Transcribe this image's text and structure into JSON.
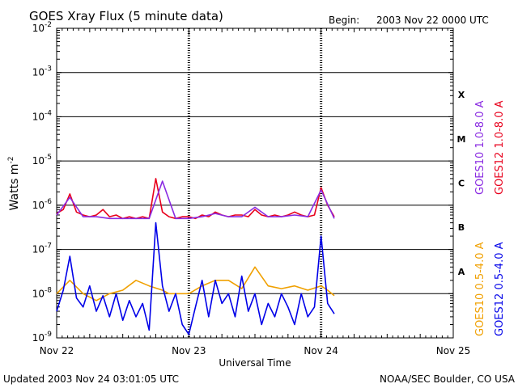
{
  "header": {
    "title": "GOES Xray Flux (5 minute data)",
    "begin_label": "Begin:",
    "begin_value": "2003 Nov 22 0000 UTC"
  },
  "footer": {
    "updated": "Updated 2003 Nov 24 03:01:05 UTC",
    "credit": "NOAA/SEC Boulder, CO USA"
  },
  "chart_data": {
    "type": "line",
    "title": "GOES Xray Flux (5 minute data)",
    "xlabel": "Universal Time",
    "ylabel": "Watts m",
    "ylabel_exponent": "-2",
    "yscale": "log",
    "ylim": [
      1e-09,
      0.01
    ],
    "xlim_days": [
      0,
      3
    ],
    "x_tick_labels": [
      "Nov 22",
      "Nov 23",
      "Nov 24",
      "Nov 25"
    ],
    "y_tick_labels": [
      {
        "base": "10",
        "exp": "-9"
      },
      {
        "base": "10",
        "exp": "-8"
      },
      {
        "base": "10",
        "exp": "-7"
      },
      {
        "base": "10",
        "exp": "-6"
      },
      {
        "base": "10",
        "exp": "-5"
      },
      {
        "base": "10",
        "exp": "-4"
      },
      {
        "base": "10",
        "exp": "-3"
      },
      {
        "base": "10",
        "exp": "-2"
      }
    ],
    "flare_classes": [
      "A",
      "B",
      "C",
      "M",
      "X"
    ],
    "grid": "horizontal",
    "legend_right_1": [
      {
        "name": "GOES10 1.0-8.0 A",
        "color": "#8a2be2"
      },
      {
        "name": "GOES12 1.0-8.0 A",
        "color": "#e8001c"
      }
    ],
    "legend_right_2": [
      {
        "name": "GOES10 0.5-4.0 A",
        "color": "#f0a000"
      },
      {
        "name": "GOES12 0.5-4.0 A",
        "color": "#0000e8"
      }
    ],
    "series": [
      {
        "name": "GOES12 1.0-8.0 A",
        "color": "#e8001c",
        "x": [
          0,
          0.05,
          0.1,
          0.15,
          0.2,
          0.25,
          0.3,
          0.35,
          0.4,
          0.45,
          0.5,
          0.55,
          0.6,
          0.65,
          0.7,
          0.75,
          0.8,
          0.85,
          0.9,
          0.95,
          1.0,
          1.05,
          1.1,
          1.15,
          1.2,
          1.25,
          1.3,
          1.35,
          1.4,
          1.45,
          1.5,
          1.55,
          1.6,
          1.65,
          1.7,
          1.75,
          1.8,
          1.85,
          1.9,
          1.95,
          2.0,
          2.05,
          2.1
        ],
        "y": [
          6.5e-07,
          8e-07,
          1.8e-06,
          7e-07,
          6e-07,
          5.5e-07,
          6e-07,
          8e-07,
          5.5e-07,
          6e-07,
          5e-07,
          5.5e-07,
          5e-07,
          5.5e-07,
          5e-07,
          4e-06,
          7e-07,
          5.5e-07,
          5e-07,
          5.5e-07,
          5.5e-07,
          5e-07,
          6e-07,
          5.5e-07,
          7e-07,
          6e-07,
          5.5e-07,
          6e-07,
          6e-07,
          5.5e-07,
          8e-07,
          6e-07,
          5.5e-07,
          6e-07,
          5.5e-07,
          6e-07,
          7e-07,
          6e-07,
          5.5e-07,
          6e-07,
          2.5e-06,
          1e-06,
          5.5e-07
        ]
      },
      {
        "name": "GOES10 1.0-8.0 A",
        "color": "#8a2be2",
        "x": [
          0,
          0.1,
          0.2,
          0.3,
          0.4,
          0.5,
          0.6,
          0.7,
          0.8,
          0.9,
          1.0,
          1.1,
          1.2,
          1.3,
          1.4,
          1.5,
          1.6,
          1.7,
          1.8,
          1.9,
          2.0,
          2.1
        ],
        "y": [
          6e-07,
          1.5e-06,
          5.5e-07,
          5.5e-07,
          5e-07,
          5e-07,
          5e-07,
          5e-07,
          3.5e-06,
          5e-07,
          5e-07,
          5.5e-07,
          6.5e-07,
          5.5e-07,
          5.5e-07,
          9e-07,
          5.5e-07,
          5.5e-07,
          6e-07,
          5.5e-07,
          2.2e-06,
          5e-07
        ]
      },
      {
        "name": "GOES10 0.5-4.0 A",
        "color": "#f0a000",
        "x": [
          0,
          0.1,
          0.2,
          0.3,
          0.4,
          0.5,
          0.6,
          0.7,
          0.8,
          0.85,
          0.9,
          1.0,
          1.1,
          1.2,
          1.3,
          1.4,
          1.5,
          1.6,
          1.7,
          1.8,
          1.9,
          2.0,
          2.05,
          2.1
        ],
        "y": [
          1e-08,
          2e-08,
          1e-08,
          7e-09,
          1e-08,
          1.2e-08,
          2e-08,
          1.5e-08,
          1.2e-08,
          1e-08,
          1e-08,
          1e-08,
          1.5e-08,
          2e-08,
          2e-08,
          1.3e-08,
          4e-08,
          1.5e-08,
          1.3e-08,
          1.5e-08,
          1.2e-08,
          1.5e-08,
          1.2e-08,
          9e-09
        ]
      },
      {
        "name": "GOES12 0.5-4.0 A",
        "color": "#0000e8",
        "x": [
          0,
          0.05,
          0.1,
          0.15,
          0.2,
          0.25,
          0.3,
          0.35,
          0.4,
          0.45,
          0.5,
          0.55,
          0.6,
          0.65,
          0.7,
          0.75,
          0.8,
          0.85,
          0.9,
          0.95,
          1.0,
          1.05,
          1.1,
          1.15,
          1.2,
          1.25,
          1.3,
          1.35,
          1.4,
          1.45,
          1.5,
          1.55,
          1.6,
          1.65,
          1.7,
          1.75,
          1.8,
          1.85,
          1.9,
          1.95,
          2.0,
          2.05,
          2.1
        ],
        "y": [
          4e-09,
          1.2e-08,
          7e-08,
          8e-09,
          5e-09,
          1.5e-08,
          4e-09,
          9e-09,
          3e-09,
          1e-08,
          2.5e-09,
          7e-09,
          3e-09,
          6e-09,
          1.5e-09,
          4e-07,
          1.5e-08,
          4e-09,
          1e-08,
          2e-09,
          1.2e-09,
          5e-09,
          2e-08,
          3e-09,
          2e-08,
          6e-09,
          1e-08,
          3e-09,
          2.5e-08,
          4e-09,
          1e-08,
          2e-09,
          6e-09,
          3e-09,
          1e-08,
          5e-09,
          2e-09,
          1e-08,
          3e-09,
          5e-09,
          2e-07,
          6e-09,
          3.5e-09
        ]
      }
    ]
  }
}
